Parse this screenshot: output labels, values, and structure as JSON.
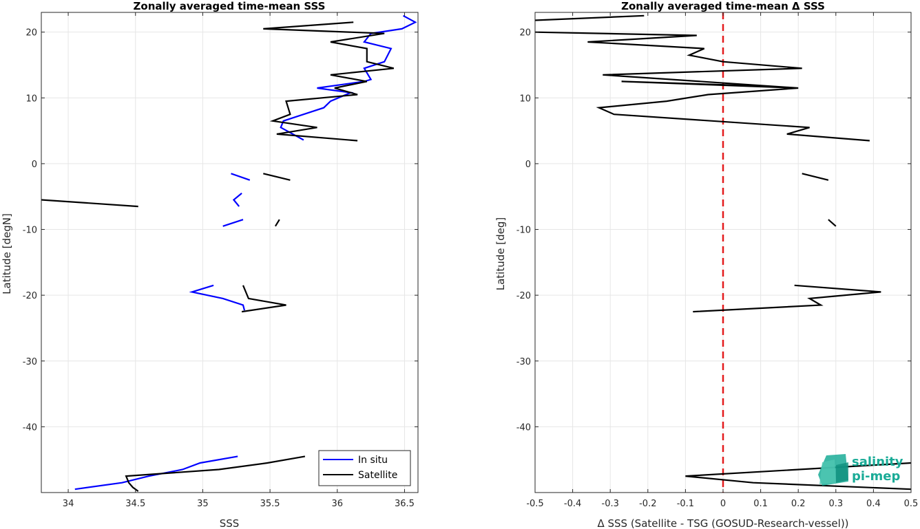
{
  "chart_data": [
    {
      "type": "line",
      "title": "Zonally averaged time-mean SSS",
      "xlabel": "SSS",
      "ylabel": "Latitude [degN]",
      "xlim": [
        33.8,
        36.6
      ],
      "ylim": [
        -50,
        23
      ],
      "xticks": [
        34,
        34.5,
        35,
        35.5,
        36,
        36.5
      ],
      "yticks": [
        20,
        10,
        0,
        -10,
        -20,
        -30,
        -40
      ],
      "grid": true,
      "legend": {
        "placement": "bottom-right",
        "entries": [
          "In situ",
          "Satellite"
        ]
      },
      "series": [
        {
          "name": "In situ",
          "color": "#0000ff",
          "segments": [
            [
              [
                36.49,
                22.5
              ],
              [
                36.58,
                21.5
              ],
              [
                36.48,
                20.5
              ],
              [
                36.25,
                19.8
              ],
              [
                36.2,
                18.5
              ],
              [
                36.4,
                17.5
              ],
              [
                36.35,
                15.5
              ],
              [
                36.2,
                14.5
              ],
              [
                36.25,
                12.8
              ],
              [
                36.2,
                12.5
              ],
              [
                35.85,
                11.5
              ],
              [
                36.1,
                10.8
              ],
              [
                35.95,
                9.5
              ],
              [
                35.9,
                8.5
              ],
              [
                35.75,
                7.5
              ],
              [
                35.6,
                6.5
              ],
              [
                35.58,
                5.5
              ],
              [
                35.75,
                3.6
              ]
            ],
            [
              [
                35.21,
                -1.5
              ],
              [
                35.35,
                -2.5
              ]
            ],
            [
              [
                35.29,
                -4.5
              ],
              [
                35.23,
                -5.5
              ],
              [
                35.27,
                -6.5
              ]
            ],
            [
              [
                35.3,
                -8.5
              ],
              [
                35.15,
                -9.5
              ]
            ],
            [
              [
                35.08,
                -18.5
              ],
              [
                34.92,
                -19.5
              ],
              [
                35.15,
                -20.5
              ],
              [
                35.3,
                -21.5
              ],
              [
                35.31,
                -22.3
              ]
            ],
            [
              [
                35.26,
                -44.5
              ],
              [
                34.98,
                -45.5
              ],
              [
                34.85,
                -46.5
              ],
              [
                34.6,
                -47.5
              ],
              [
                34.4,
                -48.5
              ],
              [
                34.05,
                -49.5
              ]
            ]
          ]
        },
        {
          "name": "Satellite",
          "color": "#000000",
          "segments": [
            [
              [
                36.12,
                21.5
              ],
              [
                35.45,
                20.5
              ],
              [
                36.35,
                19.8
              ],
              [
                35.95,
                18.5
              ],
              [
                36.22,
                17.5
              ],
              [
                36.22,
                15.5
              ],
              [
                36.42,
                14.5
              ],
              [
                35.95,
                13.5
              ],
              [
                36.22,
                12.5
              ],
              [
                35.98,
                11.5
              ],
              [
                36.15,
                10.5
              ],
              [
                35.62,
                9.5
              ],
              [
                35.65,
                7.5
              ],
              [
                35.52,
                6.5
              ],
              [
                35.85,
                5.5
              ],
              [
                35.55,
                4.5
              ],
              [
                36.15,
                3.5
              ]
            ],
            [
              [
                35.45,
                -1.5
              ],
              [
                35.65,
                -2.5
              ]
            ],
            [
              [
                33.8,
                -5.5
              ],
              [
                34.52,
                -6.5
              ]
            ],
            [
              [
                35.57,
                -8.5
              ],
              [
                35.54,
                -9.5
              ]
            ],
            [
              [
                35.3,
                -18.5
              ],
              [
                35.34,
                -20.5
              ],
              [
                35.62,
                -21.5
              ],
              [
                35.29,
                -22.5
              ]
            ],
            [
              [
                35.76,
                -44.5
              ],
              [
                35.48,
                -45.5
              ],
              [
                35.12,
                -46.5
              ],
              [
                34.43,
                -47.5
              ],
              [
                34.45,
                -48.5
              ],
              [
                34.48,
                -49.2
              ],
              [
                34.52,
                -49.8
              ]
            ]
          ]
        }
      ]
    },
    {
      "type": "line",
      "title": "Zonally averaged time-mean Δ SSS",
      "xlabel": "Δ SSS (Satellite - TSG (GOSUD-Research-vessel))",
      "ylabel": "Latitude [deg]",
      "xlim": [
        -0.5,
        0.5
      ],
      "ylim": [
        -50,
        23
      ],
      "xticks": [
        -0.5,
        -0.4,
        -0.3,
        -0.2,
        -0.1,
        0,
        0.1,
        0.2,
        0.3,
        0.4,
        0.5
      ],
      "yticks": [
        20,
        10,
        0,
        -10,
        -20,
        -30,
        -40
      ],
      "grid": true,
      "reference_line": {
        "x": 0,
        "color": "#e31a1c",
        "style": "dashed"
      },
      "series": [
        {
          "color": "#000000",
          "segments": [
            [
              [
                -0.21,
                22.5
              ],
              [
                -0.5,
                21.8
              ]
            ],
            [
              [
                -0.5,
                20.0
              ],
              [
                -0.07,
                19.5
              ],
              [
                -0.36,
                18.5
              ],
              [
                -0.05,
                17.5
              ],
              [
                -0.09,
                16.5
              ],
              [
                0.0,
                15.5
              ],
              [
                0.21,
                14.5
              ],
              [
                -0.32,
                13.5
              ],
              [
                0.2,
                11.5
              ],
              [
                -0.27,
                12.5
              ],
              [
                0.0,
                12.0
              ],
              [
                0.2,
                11.5
              ],
              [
                -0.04,
                10.5
              ],
              [
                -0.15,
                9.5
              ],
              [
                -0.33,
                8.5
              ],
              [
                -0.29,
                7.5
              ],
              [
                0.23,
                5.5
              ],
              [
                0.17,
                4.5
              ],
              [
                0.39,
                3.5
              ]
            ],
            [
              [
                0.21,
                -1.5
              ],
              [
                0.28,
                -2.5
              ]
            ],
            [
              [
                0.28,
                -8.5
              ],
              [
                0.3,
                -9.5
              ]
            ],
            [
              [
                0.19,
                -18.5
              ],
              [
                0.42,
                -19.5
              ],
              [
                0.23,
                -20.5
              ],
              [
                0.26,
                -21.5
              ],
              [
                -0.08,
                -22.5
              ]
            ],
            [
              [
                0.5,
                -45.5
              ],
              [
                -0.1,
                -47.5
              ],
              [
                0.08,
                -48.5
              ],
              [
                0.5,
                -49.5
              ]
            ]
          ]
        }
      ]
    }
  ],
  "logo": {
    "line1": "salinity",
    "line2": "pi-mep",
    "color": "#1aab97"
  }
}
